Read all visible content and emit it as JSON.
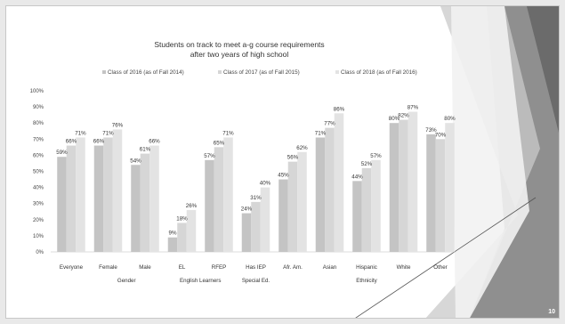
{
  "page": {
    "number": "10"
  },
  "colors": {
    "s2016": "#c4c4c4",
    "s2017": "#d6d6d6",
    "s2018": "#e3e3e3"
  },
  "chart_data": {
    "type": "bar",
    "title": [
      "Students on track to meet a-g course requirements",
      "after two years of high school"
    ],
    "legend_position": "top",
    "categories": [
      "Everyone",
      "Female",
      "Male",
      "EL",
      "RFEP",
      "Has IEP",
      "Afr. Am.",
      "Asian",
      "Hispanic",
      "White",
      "Other"
    ],
    "groups": [
      {
        "label": "Gender",
        "start": 1,
        "end": 2
      },
      {
        "label": "English Learners",
        "start": 3,
        "end": 4
      },
      {
        "label": "Special Ed.",
        "start": 5,
        "end": 5
      },
      {
        "label": "Ethnicity",
        "start": 6,
        "end": 10
      }
    ],
    "series": [
      {
        "name": "Class of 2016 (as of Fall 2014)",
        "values": [
          59,
          66,
          54,
          9,
          57,
          24,
          45,
          71,
          44,
          80,
          73
        ]
      },
      {
        "name": "Class of 2017 (as of Fall 2015)",
        "values": [
          66,
          71,
          61,
          18,
          65,
          31,
          56,
          77,
          52,
          82,
          70
        ]
      },
      {
        "name": "Class of 2018 (as of Fall 2016)",
        "values": [
          71,
          76,
          66,
          26,
          71,
          40,
          62,
          86,
          57,
          87,
          80
        ]
      }
    ],
    "ylim": [
      0,
      100
    ],
    "yticks": [
      "0%",
      "10%",
      "20%",
      "30%",
      "40%",
      "50%",
      "60%",
      "70%",
      "80%",
      "90%",
      "100%"
    ],
    "value_suffix": "%",
    "grid": false
  }
}
